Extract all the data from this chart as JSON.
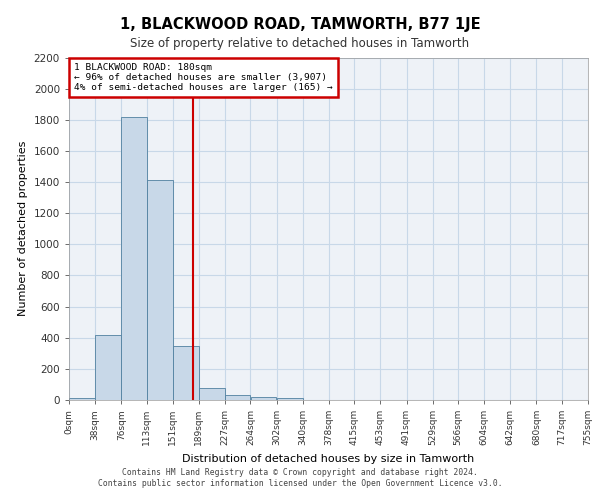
{
  "title": "1, BLACKWOOD ROAD, TAMWORTH, B77 1JE",
  "subtitle": "Size of property relative to detached houses in Tamworth",
  "xlabel": "Distribution of detached houses by size in Tamworth",
  "ylabel": "Number of detached properties",
  "bar_edges": [
    0,
    38,
    76,
    113,
    151,
    189,
    227,
    264,
    302,
    340,
    378,
    415,
    453,
    491,
    529,
    566,
    604,
    642,
    680,
    717,
    755
  ],
  "bar_heights": [
    15,
    420,
    1820,
    1410,
    350,
    75,
    35,
    20,
    15,
    0,
    0,
    0,
    0,
    0,
    0,
    0,
    0,
    0,
    0,
    0
  ],
  "bar_color": "#c8d8e8",
  "bar_edge_color": "#5080a0",
  "property_line_x": 180,
  "property_line_color": "#cc0000",
  "annotation_text": "1 BLACKWOOD ROAD: 180sqm\n← 96% of detached houses are smaller (3,907)\n4% of semi-detached houses are larger (165) →",
  "annotation_box_color": "#cc0000",
  "ylim": [
    0,
    2200
  ],
  "yticks": [
    0,
    200,
    400,
    600,
    800,
    1000,
    1200,
    1400,
    1600,
    1800,
    2000,
    2200
  ],
  "xtick_labels": [
    "0sqm",
    "38sqm",
    "76sqm",
    "113sqm",
    "151sqm",
    "189sqm",
    "227sqm",
    "264sqm",
    "302sqm",
    "340sqm",
    "378sqm",
    "415sqm",
    "453sqm",
    "491sqm",
    "529sqm",
    "566sqm",
    "604sqm",
    "642sqm",
    "680sqm",
    "717sqm",
    "755sqm"
  ],
  "grid_color": "#c8d8e8",
  "background_color": "#eef2f7",
  "footer_line1": "Contains HM Land Registry data © Crown copyright and database right 2024.",
  "footer_line2": "Contains public sector information licensed under the Open Government Licence v3.0."
}
